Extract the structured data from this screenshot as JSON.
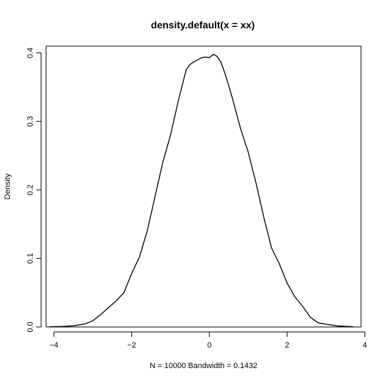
{
  "chart_data": {
    "type": "line",
    "title": "density.default(x = xx)",
    "xlabel": "N = 10000   Bandwidth = 0.1432",
    "ylabel": "Density",
    "xlim": [
      -4.2,
      3.9
    ],
    "ylim": [
      0,
      0.41
    ],
    "x_ticks": [
      -4,
      -2,
      0,
      2,
      4
    ],
    "x_tick_labels": [
      "−4",
      "−2",
      "0",
      "2",
      "4"
    ],
    "y_ticks": [
      0.0,
      0.1,
      0.2,
      0.3,
      0.4
    ],
    "y_tick_labels": [
      "0.0",
      "0.1",
      "0.2",
      "0.3",
      "0.4"
    ],
    "grid": false,
    "legend": "none",
    "box": true,
    "line_color": "#000000",
    "series": [
      {
        "x": [
          -4.1,
          -3.8,
          -3.5,
          -3.2,
          -3.0,
          -2.8,
          -2.6,
          -2.4,
          -2.2,
          -2.0,
          -1.9,
          -1.8,
          -1.6,
          -1.4,
          -1.2,
          -1.0,
          -0.8,
          -0.6,
          -0.5,
          -0.4,
          -0.3,
          -0.2,
          -0.1,
          0.0,
          0.1,
          0.2,
          0.3,
          0.4,
          0.5,
          0.6,
          0.8,
          1.0,
          1.2,
          1.4,
          1.6,
          1.8,
          2.0,
          2.2,
          2.4,
          2.6,
          2.8,
          3.0,
          3.3,
          3.7
        ],
        "y": [
          0.0003,
          0.0008,
          0.0017,
          0.0045,
          0.009,
          0.018,
          0.028,
          0.038,
          0.05,
          0.078,
          0.09,
          0.102,
          0.14,
          0.19,
          0.24,
          0.28,
          0.33,
          0.375,
          0.383,
          0.387,
          0.39,
          0.393,
          0.394,
          0.393,
          0.398,
          0.395,
          0.386,
          0.37,
          0.352,
          0.332,
          0.29,
          0.255,
          0.21,
          0.16,
          0.115,
          0.092,
          0.064,
          0.044,
          0.03,
          0.014,
          0.006,
          0.004,
          0.0015,
          0.0003
        ]
      }
    ]
  }
}
